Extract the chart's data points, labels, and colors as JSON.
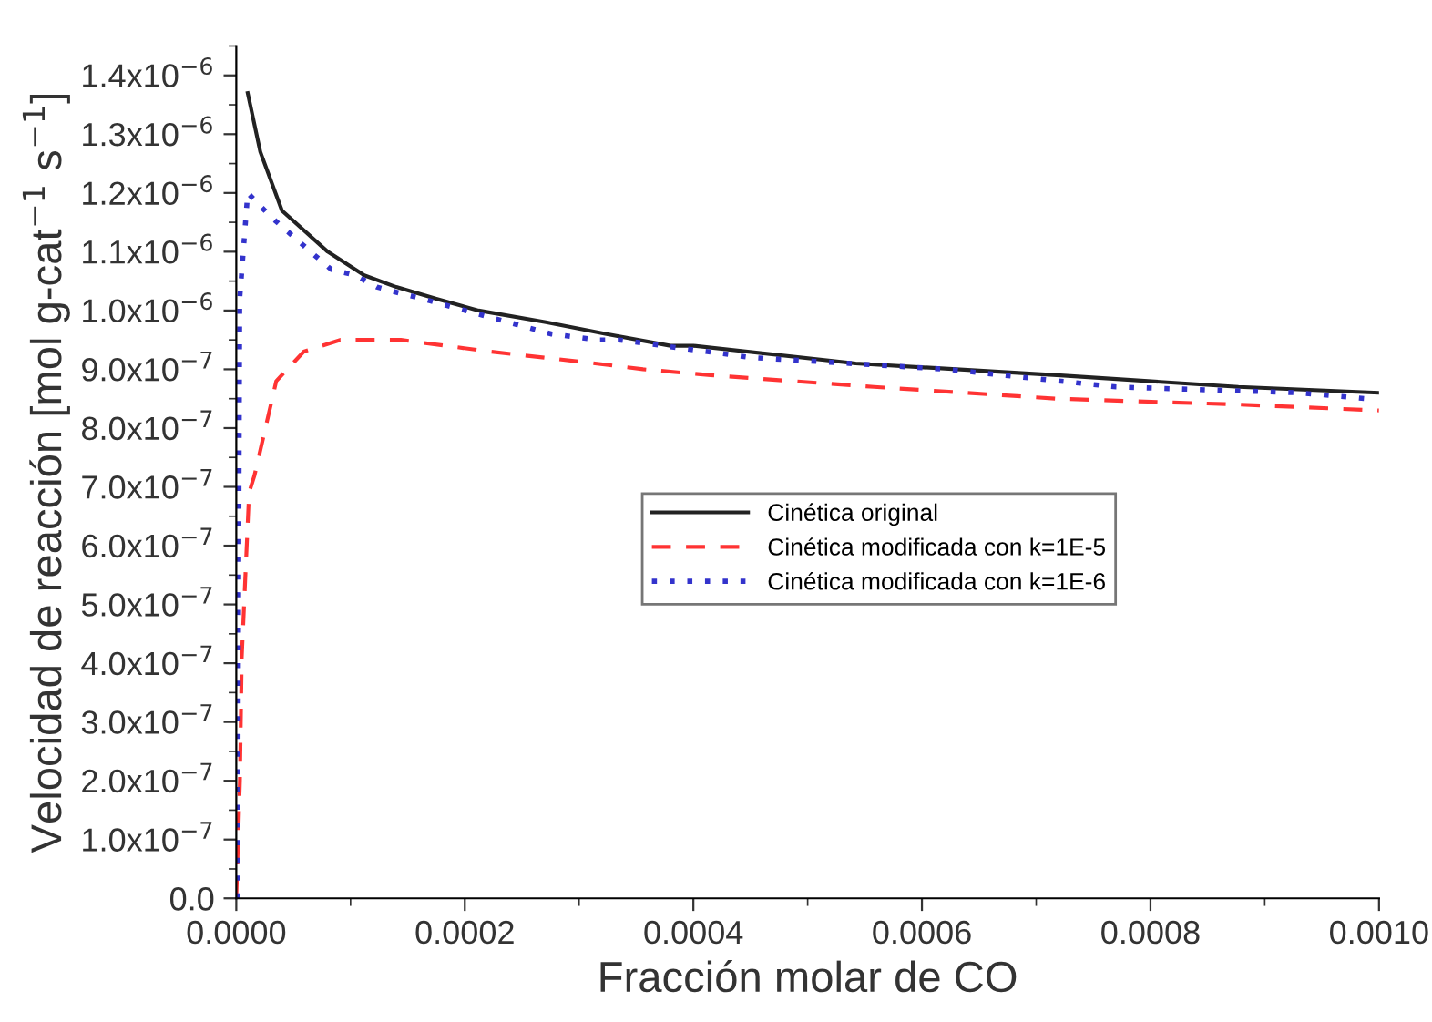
{
  "chart_data": {
    "type": "line",
    "xlabel": "Fracción molar de CO",
    "ylabel": "Velocidad de reacción [mol g-cat$^{−1}$ s$^{−1}$]",
    "xlim": [
      0,
      0.001
    ],
    "ylim": [
      0,
      1.45e-06
    ],
    "xticks": [
      {
        "value": 0,
        "label": "0.0000"
      },
      {
        "value": 0.0002,
        "label": "0.0002"
      },
      {
        "value": 0.0004,
        "label": "0.0004"
      },
      {
        "value": 0.0006,
        "label": "0.0006"
      },
      {
        "value": 0.0008,
        "label": "0.0008"
      },
      {
        "value": 0.001,
        "label": "0.0010"
      }
    ],
    "yticks": [
      {
        "value": 0,
        "label": "0.0"
      },
      {
        "value": 1e-07,
        "label": "1.0x10$^{−7}$"
      },
      {
        "value": 2e-07,
        "label": "2.0x10$^{−7}$"
      },
      {
        "value": 3e-07,
        "label": "3.0x10$^{−7}$"
      },
      {
        "value": 4e-07,
        "label": "4.0x10$^{−7}$"
      },
      {
        "value": 5e-07,
        "label": "5.0x10$^{−7}$"
      },
      {
        "value": 6e-07,
        "label": "6.0x10$^{−7}$"
      },
      {
        "value": 7e-07,
        "label": "7.0x10$^{−7}$"
      },
      {
        "value": 8e-07,
        "label": "8.0x10$^{−7}$"
      },
      {
        "value": 9e-07,
        "label": "9.0x10$^{−7}$"
      },
      {
        "value": 1e-06,
        "label": "1.0x10$^{−6}$"
      },
      {
        "value": 1.1e-06,
        "label": "1.1x10$^{−6}$"
      },
      {
        "value": 1.2e-06,
        "label": "1.2x10$^{−6}$"
      },
      {
        "value": 1.3e-06,
        "label": "1.3x10$^{−6}$"
      },
      {
        "value": 1.4e-06,
        "label": "1.4x10$^{−6}$"
      }
    ],
    "grid": false,
    "legend": "center",
    "marker": "none",
    "series": [
      {
        "name": "Cinética original",
        "color": "#222222",
        "line_style": "solid",
        "x": [
          1e-05,
          2.1e-05,
          4e-05,
          8e-05,
          0.000112,
          0.00014,
          0.000175,
          0.000212,
          0.000271,
          0.000324,
          0.00038,
          0.0004,
          0.000542,
          0.000718,
          0.000877,
          0.001
        ],
        "values": [
          1.37e-06,
          1.27e-06,
          1.17e-06,
          1.1e-06,
          1.06e-06,
          1.04e-06,
          1.02e-06,
          1e-06,
          9.8e-07,
          9.6e-07,
          9.4e-07,
          9.4e-07,
          9.1e-07,
          8.9e-07,
          8.7e-07,
          8.6e-07
        ]
      },
      {
        "name": "Cinética modificada con k=1E-5",
        "color": "#ff3333",
        "line_style": "dashed",
        "x": [
          0,
          3.2e-06,
          4.8e-06,
          1.12e-05,
          1.6e-05,
          3.5e-05,
          5.9e-05,
          9.1e-05,
          0.000144,
          0.000223,
          0.000314,
          0.000356,
          0.000415,
          0.000558,
          0.000718,
          0.000877,
          0.001
        ],
        "values": [
          0,
          2e-07,
          4.1e-07,
          6.9e-07,
          7.2e-07,
          8.8e-07,
          9.3e-07,
          9.5e-07,
          9.5e-07,
          9.3e-07,
          9.1e-07,
          9e-07,
          8.9e-07,
          8.7e-07,
          8.5e-07,
          8.4e-07,
          8.3e-07
        ]
      },
      {
        "name": "Cinética modificada con k=1E-6",
        "color": "#3333cc",
        "line_style": "dotted",
        "x": [
          1e-06,
          3e-06,
          1e-05,
          3e-05,
          6.5e-05,
          8.3e-05,
          0.000104,
          0.000123,
          0.000142,
          0.000163,
          0.000238,
          0.000276,
          0.000316,
          0.000335,
          0.000451,
          0.000622,
          0.00077,
          0.00093,
          0.000989
        ],
        "values": [
          0,
          1.02e-06,
          1.2e-06,
          1.16e-06,
          1.1e-06,
          1.07e-06,
          1.06e-06,
          1.04e-06,
          1.03e-06,
          1.02e-06,
          9.8e-07,
          9.6e-07,
          9.5e-07,
          9.5e-07,
          9.2e-07,
          9e-07,
          8.7e-07,
          8.6e-07,
          8.5e-07
        ]
      }
    ]
  }
}
